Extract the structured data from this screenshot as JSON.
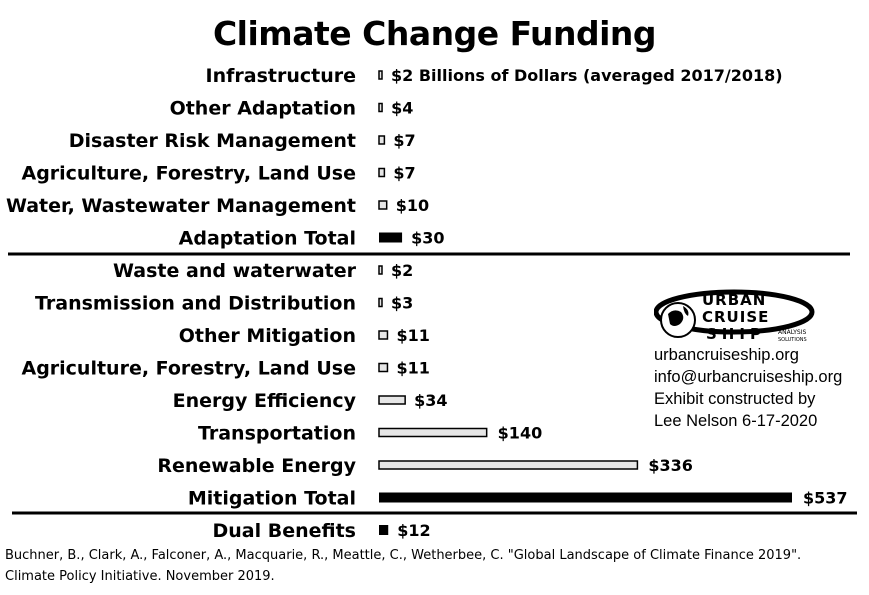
{
  "chart_data": {
    "type": "bar",
    "orientation": "horizontal",
    "title": "Climate Change Funding",
    "unit_note": "Billions of Dollars (averaged 2017/2018)",
    "bars": [
      {
        "label": "Infrastructure",
        "value": 2,
        "value_label": "$2",
        "style": "outline",
        "group": "adaptation"
      },
      {
        "label": "Other Adaptation",
        "value": 4,
        "value_label": "$4",
        "style": "outline",
        "group": "adaptation"
      },
      {
        "label": "Disaster Risk Management",
        "value": 7,
        "value_label": "$7",
        "style": "outline",
        "group": "adaptation"
      },
      {
        "label": "Agriculture, Forestry, Land Use",
        "value": 7,
        "value_label": "$7",
        "style": "outline",
        "group": "adaptation"
      },
      {
        "label": "Water, Wastewater Management",
        "value": 10,
        "value_label": "$10",
        "style": "outline",
        "group": "adaptation"
      },
      {
        "label": "Adaptation Total",
        "value": 30,
        "value_label": "$30",
        "style": "solid",
        "group": "adaptation"
      },
      {
        "label": "Waste and waterwater",
        "value": 2,
        "value_label": "$2",
        "style": "outline",
        "group": "mitigation"
      },
      {
        "label": "Transmission and Distribution",
        "value": 3,
        "value_label": "$3",
        "style": "outline",
        "group": "mitigation"
      },
      {
        "label": "Other Mitigation",
        "value": 11,
        "value_label": "$11",
        "style": "outline",
        "group": "mitigation"
      },
      {
        "label": "Agriculture, Forestry, Land Use",
        "value": 11,
        "value_label": "$11",
        "style": "outline",
        "group": "mitigation"
      },
      {
        "label": "Energy Efficiency",
        "value": 34,
        "value_label": "$34",
        "style": "outline",
        "group": "mitigation"
      },
      {
        "label": "Transportation",
        "value": 140,
        "value_label": "$140",
        "style": "outline",
        "group": "mitigation"
      },
      {
        "label": "Renewable Energy",
        "value": 336,
        "value_label": "$336",
        "style": "outline",
        "group": "mitigation"
      },
      {
        "label": "Mitigation Total",
        "value": 537,
        "value_label": "$537",
        "style": "solid",
        "group": "mitigation"
      },
      {
        "label": "Dual Benefits",
        "value": 12,
        "value_label": "$12",
        "style": "solid",
        "group": "dual"
      }
    ],
    "xlim": [
      0,
      537
    ],
    "grid": false,
    "colors": {
      "solid": "#000000",
      "outline_fill": "#e6e6e6",
      "outline_stroke": "#000000"
    }
  },
  "logo": {
    "line1": "URBAN",
    "line2": "CRUISE",
    "line3": "SHIP",
    "sub1": "ANALYSIS",
    "sub2": "SOLUTIONS"
  },
  "contact": {
    "website": "urbancruiseship.org",
    "email": "info@urbancruiseship.org",
    "credit": "Exhibit constructed by",
    "author_date": "Lee Nelson 6-17-2020"
  },
  "source": {
    "line1": "Buchner, B., Clark, A., Falconer, A., Macquarie, R., Meattle, C., Wetherbee, C. \"Global Landscape of Climate Finance 2019\".",
    "line2": "Climate Policy Initiative. November 2019."
  }
}
